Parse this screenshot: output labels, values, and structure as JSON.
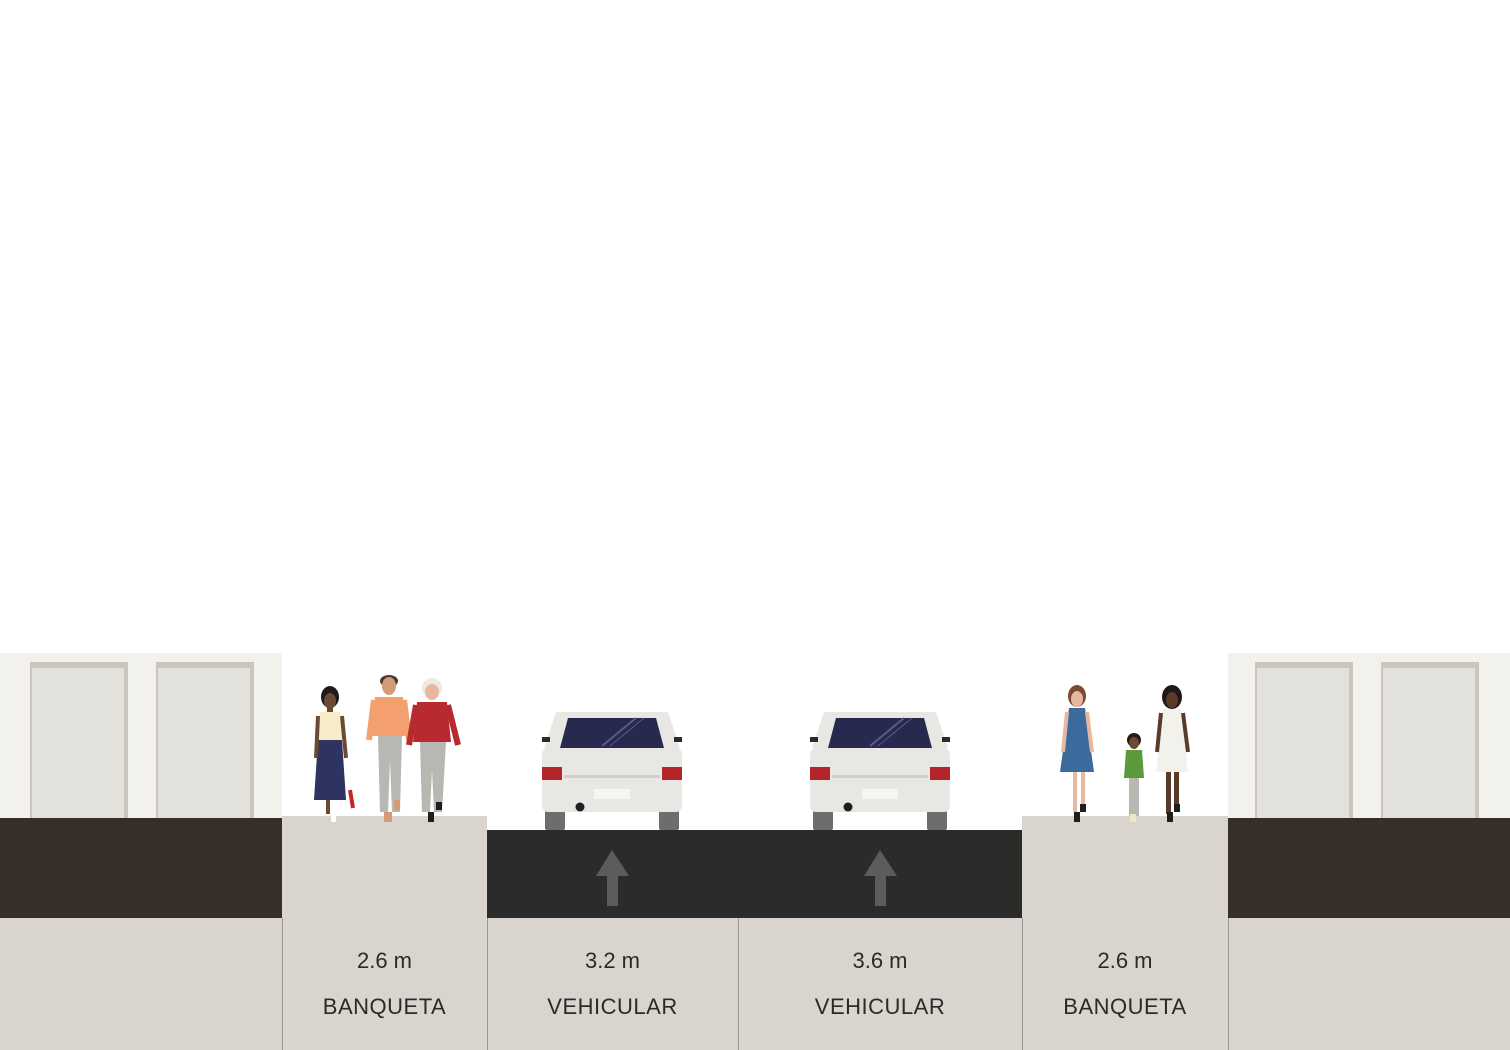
{
  "colors": {
    "sky": "#ffffff",
    "building_wall": "#f2f1ec",
    "building_panel": "#e2e1dc",
    "building_frame": "#c9c6c0",
    "building_base": "#352e29",
    "sidewalk": "#d9d5ce",
    "road": "#2b2c2a",
    "arrow": "#5c5d5b",
    "label_band": "#d9d5ce",
    "divider": "#9a968f",
    "car_body": "#e8e7e4",
    "car_glass": "#28294f",
    "car_light": "#b3252b"
  },
  "segments": [
    {
      "id": "sidewalk-left",
      "width": "2.6 m",
      "name": "BANQUETA",
      "type": "sidewalk"
    },
    {
      "id": "lane-1",
      "width": "3.2 m",
      "name": "VEHICULAR",
      "type": "drive-lane",
      "direction": "up",
      "vehicle": "car"
    },
    {
      "id": "lane-2",
      "width": "3.6 m",
      "name": "VEHICULAR",
      "type": "drive-lane",
      "direction": "up",
      "vehicle": "car"
    },
    {
      "id": "sidewalk-right",
      "width": "2.6 m",
      "name": "BANQUETA",
      "type": "sidewalk"
    }
  ],
  "icons": [
    "building-icon",
    "pedestrian-icon",
    "car-icon",
    "arrow-up-icon"
  ]
}
